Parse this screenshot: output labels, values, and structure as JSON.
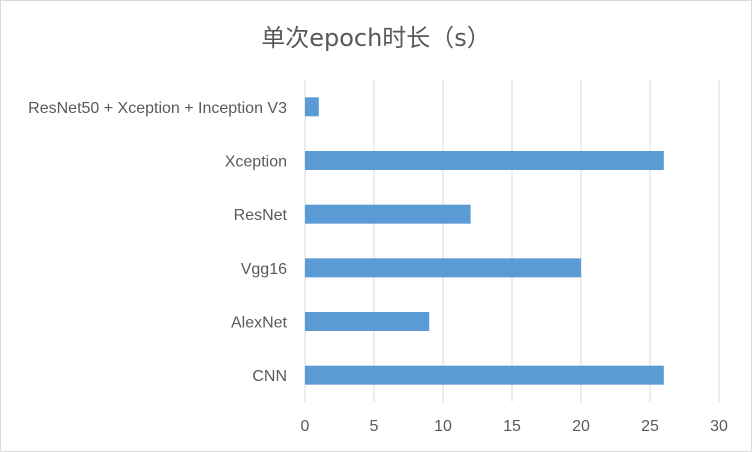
{
  "chart_data": {
    "type": "bar",
    "orientation": "horizontal",
    "title": "单次epoch时长（s）",
    "xlabel": "",
    "ylabel": "",
    "categories": [
      "CNN",
      "AlexNet",
      "Vgg16",
      "ResNet",
      "Xception",
      "ResNet50 + Xception + Inception V3"
    ],
    "values": [
      26,
      9,
      20,
      12,
      26,
      1
    ],
    "xlim": [
      0,
      30
    ],
    "xticks": [
      "0",
      "5",
      "10",
      "15",
      "20",
      "25",
      "30"
    ],
    "grid": "vertical",
    "legend": "none",
    "bar_color": "#5b9bd5",
    "grid_color": "#d9d9d9"
  }
}
